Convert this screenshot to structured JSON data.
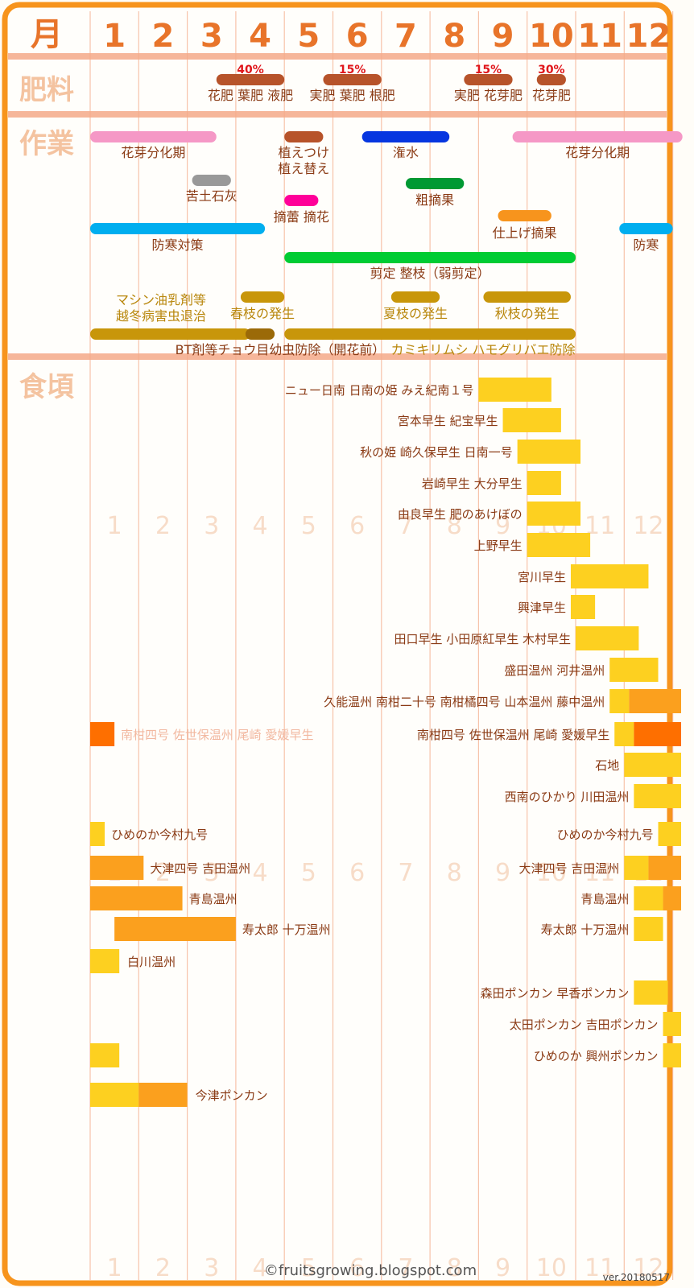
{
  "chart_data": {
    "type": "gantt",
    "title": "",
    "row_headers": {
      "month": "月",
      "fertilizer": "肥料",
      "work": "作業",
      "harvest": "食頃"
    },
    "months": [
      "1",
      "2",
      "3",
      "4",
      "5",
      "6",
      "7",
      "8",
      "9",
      "10",
      "11",
      "12"
    ],
    "colors": {
      "frame": "#f7941d",
      "divider": "#f4a988",
      "month_label": "#e8742a",
      "header": "#f4c3a0",
      "fertilizer_bar": "#b7532a",
      "pct_text": "#e0161b",
      "label_brown": "#8a3a14",
      "label_gold": "#b8860b",
      "faint_month": "#f7dcc8",
      "yellow": "#fdd020",
      "orange_light": "#fba01e",
      "orange_dark": "#fe6f00"
    },
    "fertilizer": [
      {
        "start": 3.6,
        "end": 5.0,
        "percent": "40%",
        "label": "花肥 葉肥 液肥"
      },
      {
        "start": 5.8,
        "end": 7.0,
        "percent": "15%",
        "label": "実肥 葉肥 根肥"
      },
      {
        "start": 8.7,
        "end": 9.7,
        "percent": "15%",
        "label": "実肥 花芽肥"
      },
      {
        "start": 10.2,
        "end": 10.8,
        "percent": "30%",
        "label": "花芽肥"
      }
    ],
    "tasks": [
      {
        "name": "花芽分化期",
        "color": "#f598c6",
        "segments": [
          [
            1.0,
            3.6
          ]
        ],
        "label": [
          "花芽分化期"
        ]
      },
      {
        "name": "花芽分化期",
        "color": "#f598c6",
        "segments": [
          [
            9.7,
            13.2
          ]
        ],
        "label": [
          "花芽分化期"
        ]
      },
      {
        "name": "植えつけ植え替え",
        "color": "#b7532a",
        "segments": [
          [
            5.0,
            5.8
          ]
        ],
        "label": [
          "植えつけ",
          "植え替え"
        ]
      },
      {
        "name": "潅水",
        "color": "#0636e0",
        "segments": [
          [
            6.6,
            8.4
          ]
        ],
        "label": [
          "潅水"
        ]
      },
      {
        "name": "苦土石灰",
        "color": "#999999",
        "segments": [
          [
            3.1,
            3.9
          ]
        ],
        "label": [
          "苦土石灰"
        ]
      },
      {
        "name": "摘蕾 摘花",
        "color": "#ff0099",
        "segments": [
          [
            5.0,
            5.7
          ]
        ],
        "label": [
          "摘蕾 摘花"
        ]
      },
      {
        "name": "粗摘果",
        "color": "#009933",
        "segments": [
          [
            7.5,
            8.7
          ]
        ],
        "label": [
          "粗摘果"
        ]
      },
      {
        "name": "仕上げ摘果",
        "color": "#f7941d",
        "segments": [
          [
            9.4,
            10.5
          ]
        ],
        "label": [
          "仕上げ摘果"
        ]
      },
      {
        "name": "防寒対策",
        "color": "#00aeef",
        "segments": [
          [
            1.0,
            4.6
          ]
        ],
        "label": [
          "防寒対策"
        ]
      },
      {
        "name": "防寒",
        "color": "#00aeef",
        "segments": [
          [
            11.9,
            13.0
          ]
        ],
        "label": [
          "防寒"
        ]
      },
      {
        "name": "剪定 整枝（弱剪定）",
        "color": "#00cc33",
        "segments": [
          [
            5.0,
            11.0
          ]
        ],
        "label": [
          "剪定 整枝（弱剪定）"
        ]
      },
      {
        "name": "マシン油乳剤等越冬病害虫退治",
        "color": "#c8960a",
        "segments": [],
        "label": [
          "マシン油乳剤等",
          "越冬病害虫退治"
        ]
      },
      {
        "name": "春枝の発生",
        "color": "#c8960a",
        "segments": [
          [
            4.1,
            5.0
          ]
        ],
        "label": [
          "春枝の発生"
        ]
      },
      {
        "name": "夏枝の発生",
        "color": "#c8960a",
        "segments": [
          [
            7.2,
            8.2
          ]
        ],
        "label": [
          "夏枝の発生"
        ]
      },
      {
        "name": "秋枝の発生",
        "color": "#c8960a",
        "segments": [
          [
            9.1,
            10.9
          ]
        ],
        "label": [
          "秋枝の発生"
        ]
      },
      {
        "name": "BT剤等チョウ目幼虫防除（開花前）カミキリムシ ハモグリバエ防除",
        "color": "#c8960a",
        "segments": [
          [
            1.0,
            4.3
          ],
          [
            4.2,
            4.8
          ],
          [
            5.0,
            11.0
          ]
        ],
        "label": [
          "BT剤等チョウ目幼虫防除（開花前）",
          "カミキリムシ ハモグリバエ防除"
        ]
      }
    ],
    "harvest": [
      {
        "label": "ニュー日南 日南の姫 みえ紀南１号",
        "segments": [
          [
            9.0,
            10.5,
            "yellow"
          ]
        ]
      },
      {
        "label": "宮本早生 紀宝早生",
        "segments": [
          [
            9.5,
            10.7,
            "yellow"
          ]
        ]
      },
      {
        "label": "秋の姫 崎久保早生 日南一号",
        "segments": [
          [
            9.8,
            11.1,
            "yellow"
          ]
        ]
      },
      {
        "label": "岩崎早生 大分早生",
        "segments": [
          [
            10.0,
            10.7,
            "yellow"
          ]
        ]
      },
      {
        "label": "由良早生 肥のあけぼの",
        "segments": [
          [
            10.0,
            11.1,
            "yellow"
          ]
        ]
      },
      {
        "label": "上野早生",
        "segments": [
          [
            10.0,
            11.3,
            "yellow"
          ]
        ]
      },
      {
        "label": "宮川早生",
        "segments": [
          [
            10.9,
            12.5,
            "yellow"
          ]
        ]
      },
      {
        "label": "興津早生",
        "segments": [
          [
            10.9,
            11.4,
            "yellow"
          ]
        ]
      },
      {
        "label": "田口早生 小田原紅早生 木村早生",
        "segments": [
          [
            11.0,
            12.3,
            "yellow"
          ]
        ]
      },
      {
        "label": "盛田温州 河井温州",
        "segments": [
          [
            11.7,
            12.7,
            "yellow"
          ]
        ]
      },
      {
        "label": "久能温州 南柑二十号 南柑橘四号 山本温州 藤中温州",
        "segments": [
          [
            11.7,
            12.1,
            "yellow"
          ],
          [
            12.1,
            13.3,
            "orange_light"
          ]
        ]
      },
      {
        "label": "南柑四号 佐世保温州 尾崎 愛媛早生",
        "segments": [
          [
            1.0,
            1.5,
            "orange_dark"
          ],
          [
            11.8,
            12.2,
            "yellow"
          ],
          [
            12.2,
            13.3,
            "orange_dark"
          ]
        ],
        "early_label": "南柑四号 佐世保温州 尾崎 愛媛早生"
      },
      {
        "label": "石地",
        "segments": [
          [
            12.0,
            13.3,
            "yellow"
          ]
        ]
      },
      {
        "label": "西南のひかり 川田温州",
        "segments": [
          [
            12.2,
            13.3,
            "yellow"
          ]
        ]
      },
      {
        "label": "ひめのか今村九号",
        "segments": [
          [
            1.0,
            1.3,
            "yellow"
          ],
          [
            12.7,
            13.3,
            "yellow"
          ]
        ],
        "early_label": "ひめのか今村九号"
      },
      {
        "label": "大津四号 吉田温州",
        "segments": [
          [
            1.0,
            2.1,
            "orange_light"
          ],
          [
            12.0,
            12.5,
            "yellow"
          ],
          [
            12.5,
            13.3,
            "orange_light"
          ]
        ],
        "early_label": "大津四号 吉田温州"
      },
      {
        "label": "青島温州",
        "segments": [
          [
            1.0,
            2.9,
            "orange_light"
          ],
          [
            12.2,
            12.8,
            "yellow"
          ],
          [
            12.8,
            13.3,
            "orange_light"
          ]
        ],
        "early_label": "青島温州"
      },
      {
        "label": "寿太郎 十万温州",
        "segments": [
          [
            1.5,
            4.0,
            "orange_light"
          ],
          [
            12.2,
            12.8,
            "yellow"
          ]
        ],
        "early_label": "寿太郎 十万温州"
      },
      {
        "label": "白川温州",
        "segments": [
          [
            1.0,
            1.6,
            "yellow"
          ]
        ],
        "early_only": true
      },
      {
        "label": "森田ポンカン 早香ポンカン",
        "segments": [
          [
            12.2,
            12.9,
            "yellow"
          ]
        ]
      },
      {
        "label": "太田ポンカン 吉田ポンカン",
        "segments": [
          [
            12.8,
            13.3,
            "yellow"
          ]
        ]
      },
      {
        "label": "ひめのか 興州ポンカン",
        "segments": [
          [
            1.0,
            1.6,
            "yellow"
          ],
          [
            12.8,
            13.3,
            "yellow"
          ]
        ]
      },
      {
        "label": "今津ポンカン",
        "segments": [
          [
            1.0,
            2.0,
            "yellow"
          ],
          [
            2.0,
            3.0,
            "orange_light"
          ]
        ],
        "early_only": true
      }
    ],
    "footer": "©fruitsgrowing.blogspot.com",
    "version": "ver.20180517"
  }
}
